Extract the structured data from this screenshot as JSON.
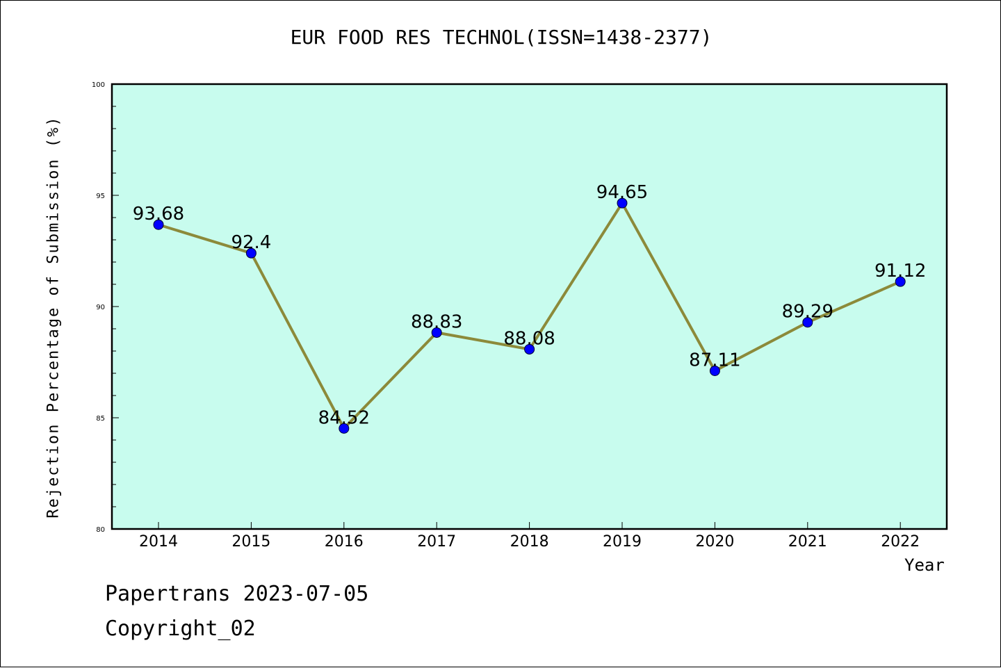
{
  "chart_data": {
    "type": "line",
    "title": "EUR FOOD RES TECHNOL(ISSN=1438-2377)",
    "xlabel": "Year",
    "ylabel": "Rejection Percentage of Submission (%)",
    "categories": [
      "2014",
      "2015",
      "2016",
      "2017",
      "2018",
      "2019",
      "2020",
      "2021",
      "2022"
    ],
    "series": [
      {
        "values": [
          93.68,
          92.4,
          84.52,
          88.83,
          88.08,
          94.65,
          87.11,
          89.29,
          91.12
        ],
        "labels": [
          "93.68",
          "92.4",
          "84.52",
          "88.83",
          "88.08",
          "94.65",
          "87.11",
          "89.29",
          "91.12"
        ]
      }
    ],
    "ylim": [
      80,
      100
    ],
    "yticks": [
      "80",
      "85",
      "90",
      "95",
      "100"
    ],
    "grid": false,
    "legend": "none",
    "colors": {
      "plot_background": "#c8fcee",
      "line": "#8c8a3a",
      "marker": "#0000ff",
      "axis": "#000000"
    }
  },
  "footer": {
    "line1": "Papertrans 2023-07-05",
    "line2": "Copyright_02"
  }
}
